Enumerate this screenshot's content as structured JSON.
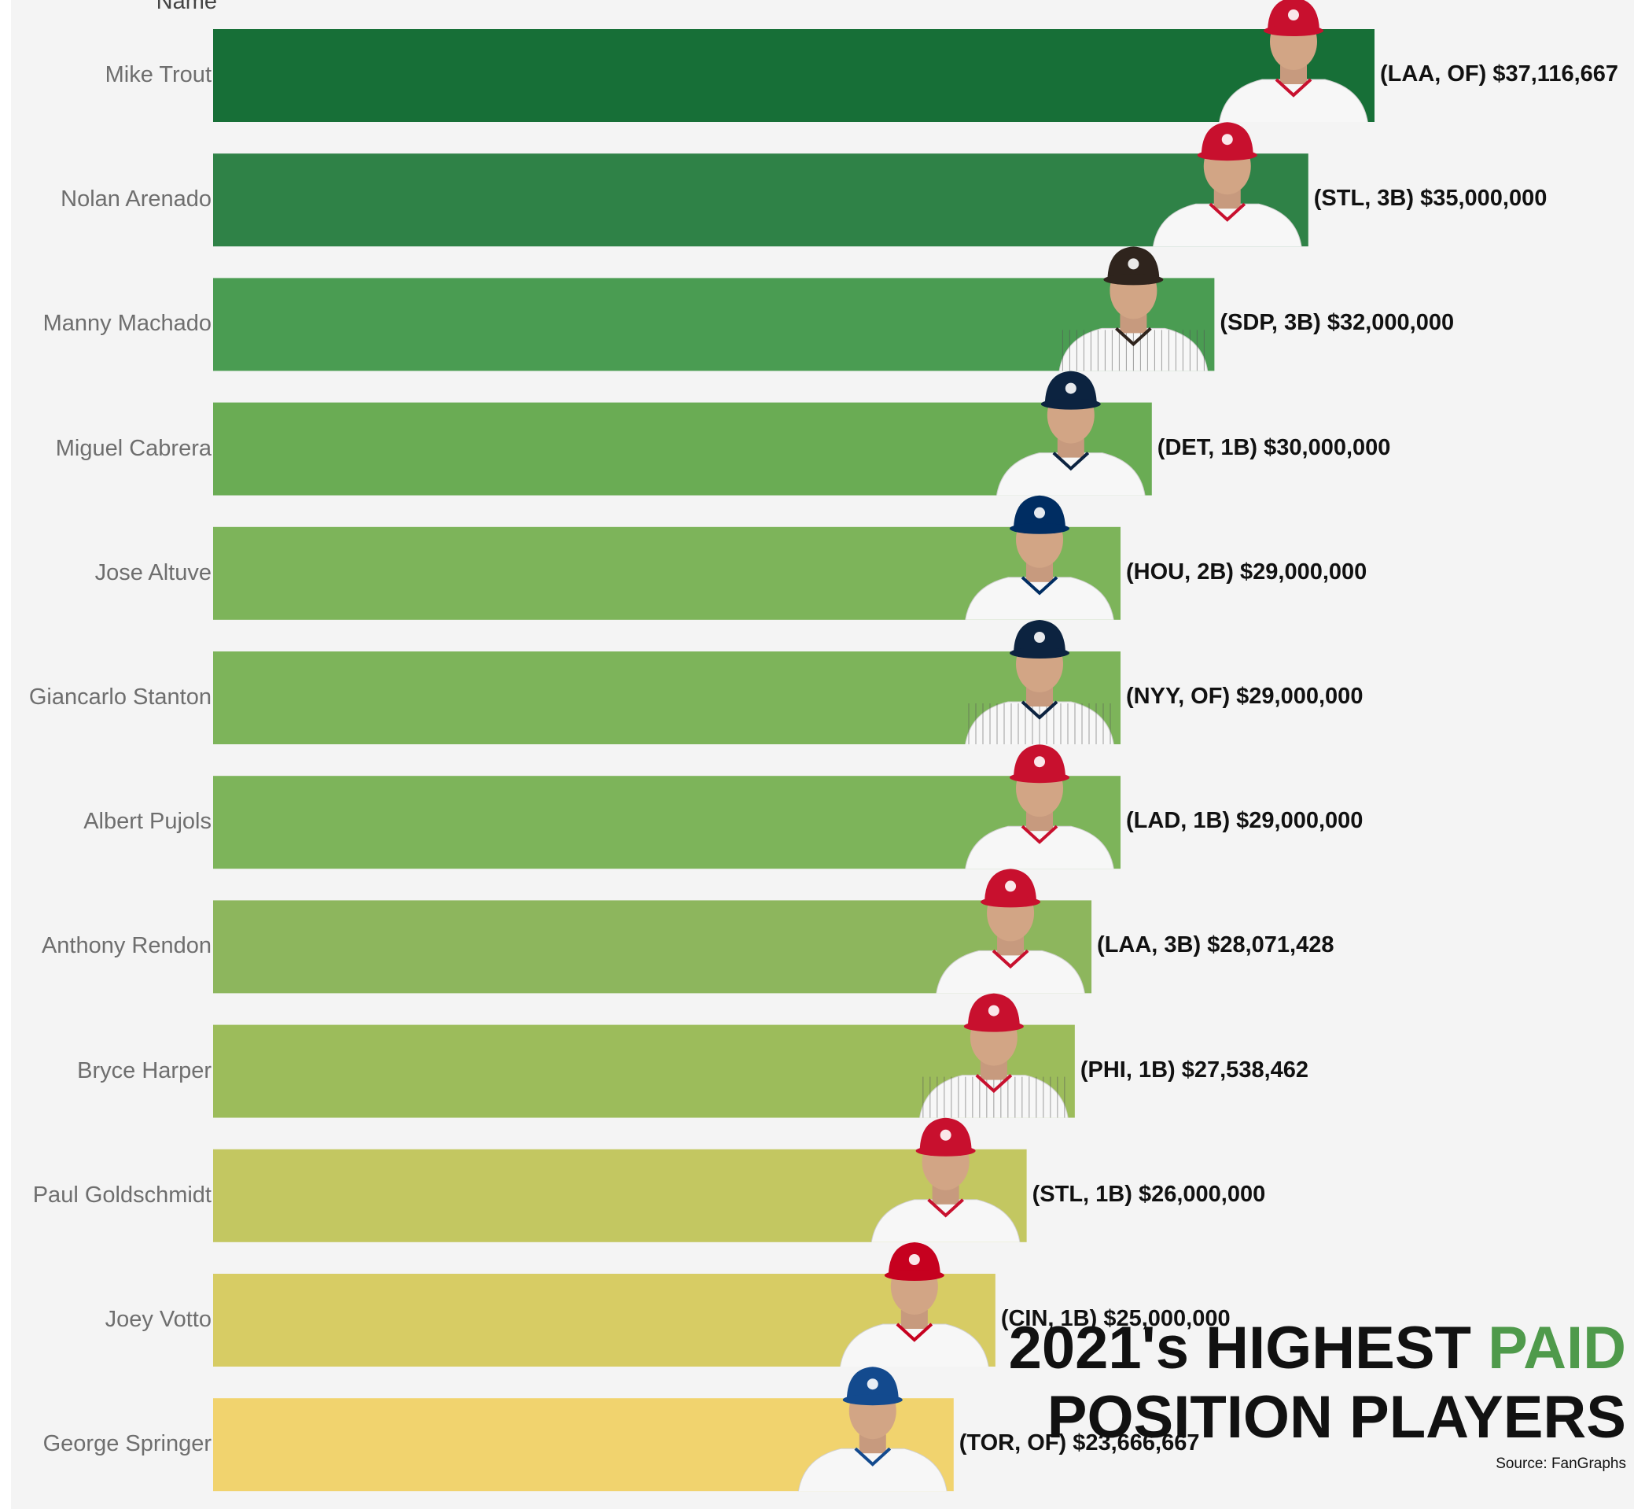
{
  "chart_data": {
    "type": "bar",
    "orientation": "horizontal",
    "axis_title": "Name",
    "title_line1_main": "2021's HIGHEST ",
    "title_line1_accent": "PAID",
    "title_line2": "POSITION PLAYERS",
    "source": "Source: FanGraphs",
    "accent_color": "#4f9a4b",
    "xlim": [
      0,
      37116667
    ],
    "bars": [
      {
        "name": "Mike Trout",
        "label": "(LAA, OF) $37,116,667",
        "value": 37116667,
        "color": "#176f37",
        "team_cap": "#c8102e",
        "jersey": "white"
      },
      {
        "name": "Nolan Arenado",
        "label": "(STL, 3B) $35,000,000",
        "value": 35000000,
        "color": "#2f8247",
        "team_cap": "#c8102e",
        "jersey": "white"
      },
      {
        "name": "Manny Machado",
        "label": "(SDP, 3B) $32,000,000",
        "value": 32000000,
        "color": "#4a9c52",
        "team_cap": "#2f241d",
        "jersey": "pinstripe"
      },
      {
        "name": "Miguel Cabrera",
        "label": "(DET, 1B) $30,000,000",
        "value": 30000000,
        "color": "#6aac54",
        "team_cap": "#0c2340",
        "jersey": "white"
      },
      {
        "name": "Jose Altuve",
        "label": "(HOU, 2B) $29,000,000",
        "value": 29000000,
        "color": "#7db45a",
        "team_cap": "#002d62",
        "jersey": "white"
      },
      {
        "name": "Giancarlo Stanton",
        "label": "(NYY, OF) $29,000,000",
        "value": 29000000,
        "color": "#7db45a",
        "team_cap": "#0c2340",
        "jersey": "pinstripe"
      },
      {
        "name": "Albert Pujols",
        "label": "(LAD, 1B) $29,000,000",
        "value": 29000000,
        "color": "#7db45a",
        "team_cap": "#c8102e",
        "jersey": "white"
      },
      {
        "name": "Anthony Rendon",
        "label": "(LAA, 3B) $28,071,428",
        "value": 28071428,
        "color": "#8db65d",
        "team_cap": "#c8102e",
        "jersey": "white"
      },
      {
        "name": "Bryce Harper",
        "label": "(PHI, 1B) $27,538,462",
        "value": 27538462,
        "color": "#9cbc5b",
        "team_cap": "#c8102e",
        "jersey": "pinstripe"
      },
      {
        "name": "Paul Goldschmidt",
        "label": "(STL, 1B) $26,000,000",
        "value": 26000000,
        "color": "#c3c761",
        "team_cap": "#c8102e",
        "jersey": "white"
      },
      {
        "name": "Joey Votto",
        "label": "(CIN, 1B) $25,000,000",
        "value": 25000000,
        "color": "#d7cc64",
        "team_cap": "#c6011f",
        "jersey": "white"
      },
      {
        "name": "George Springer",
        "label": "(TOR, OF) $23,666,667",
        "value": 23666667,
        "color": "#f1d36e",
        "team_cap": "#134a8e",
        "jersey": "white"
      }
    ]
  }
}
